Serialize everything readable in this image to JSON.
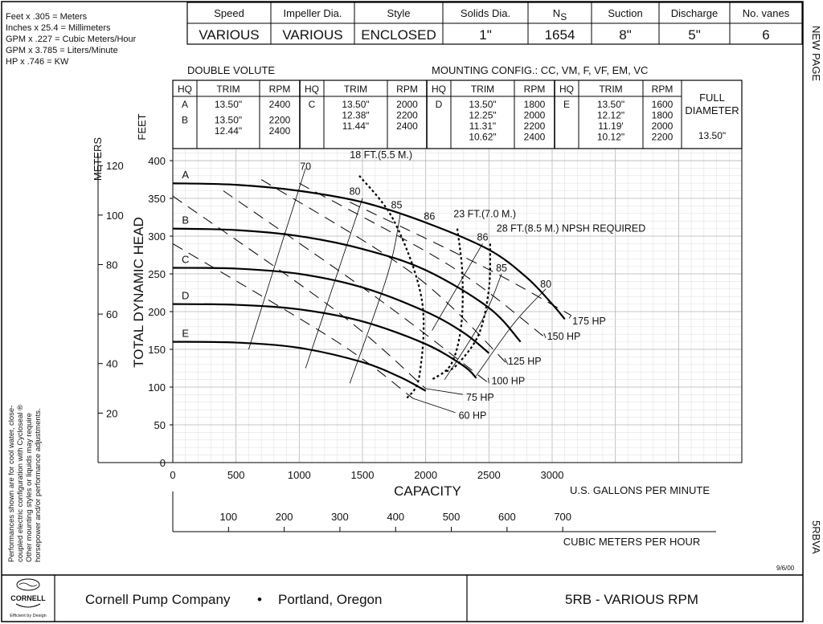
{
  "conversions": [
    "Feet x .305 = Meters",
    "Inches x 25.4 = Millimeters",
    "GPM x .227 = Cubic Meters/Hour",
    "GPM x 3.785 = Liters/Minute",
    "HP x .746 = KW"
  ],
  "spec_table": {
    "headers": [
      "Speed",
      "Impeller Dia.",
      "Style",
      "Solids Dia.",
      "N",
      "Suction",
      "Discharge",
      "No. vanes"
    ],
    "ns_subscript": "S",
    "values": [
      "VARIOUS",
      "VARIOUS",
      "ENCLOSED",
      "1\"",
      "1654",
      "8\"",
      "5\"",
      "6"
    ]
  },
  "side_labels": {
    "new_page": "NEW PAGE",
    "model_code": "5RBVA"
  },
  "volute": "DOUBLE VOLUTE",
  "mounting": "MOUNTING CONFIG.:   CC,  VM,  F,  VF,  EM,  VC",
  "trim_table": {
    "col_headers": [
      "HQ",
      "TRIM",
      "RPM"
    ],
    "groups": [
      {
        "rows": [
          {
            "hq": "A",
            "trim": [
              "13.50\""
            ],
            "rpm": [
              "2400"
            ]
          },
          {
            "hq": "B",
            "trim": [
              "13.50\"",
              "12.44\""
            ],
            "rpm": [
              "2200",
              "2400"
            ]
          }
        ]
      },
      {
        "rows": [
          {
            "hq": "C",
            "trim": [
              "13.50\"",
              "12.38\"",
              "11.44\""
            ],
            "rpm": [
              "2000",
              "2200",
              "2400"
            ]
          }
        ]
      },
      {
        "rows": [
          {
            "hq": "D",
            "trim": [
              "13.50\"",
              "12.25\"",
              "11.31\"",
              "10.62\""
            ],
            "rpm": [
              "1800",
              "2000",
              "2200",
              "2400"
            ]
          }
        ]
      },
      {
        "rows": [
          {
            "hq": "E",
            "trim": [
              "13.50\"",
              "12.12\"",
              "11.19'",
              "10.12\""
            ],
            "rpm": [
              "1600",
              "1800",
              "2000",
              "2200"
            ]
          }
        ]
      }
    ],
    "full_diameter": [
      "FULL",
      "DIAMETER",
      "13.50\""
    ]
  },
  "footnote": [
    "Performances shown are for cool water, close-",
    "coupled electric configuration with Cycloseal ®",
    "Other mounting styles or liquids may require",
    "horsepower and/or performance adjustments."
  ],
  "date": "9/6/00",
  "logo": {
    "name": "CORNELL",
    "tagline": "Efficient by Design"
  },
  "company": "Cornell Pump Company",
  "bullet": "•",
  "location": "Portland, Oregon",
  "model_title": "5RB - VARIOUS RPM",
  "chart_data": {
    "type": "line",
    "xlabel": "CAPACITY",
    "xunit": "U.S. GALLONS PER MINUTE",
    "ylabel": "TOTAL DYNAMIC HEAD",
    "ylabel_feet": "FEET",
    "ylabel_meters": "METERS",
    "xlim": [
      0,
      4500
    ],
    "ylim": [
      0,
      400
    ],
    "x_ticks": [
      0,
      500,
      1000,
      1500,
      2000,
      2500,
      3000
    ],
    "y_ticks": [
      0,
      50,
      100,
      150,
      200,
      250,
      300,
      350,
      400
    ],
    "meters_ticks": [
      20,
      40,
      60,
      80,
      100,
      120
    ],
    "cmh_label": "CUBIC METERS PER HOUR",
    "cmh_ticks": [
      100,
      200,
      300,
      400,
      500,
      600,
      700
    ],
    "grid": true,
    "head_curves": [
      {
        "name": "A",
        "points": [
          [
            0,
            370
          ],
          [
            500,
            368
          ],
          [
            1000,
            360
          ],
          [
            1500,
            345
          ],
          [
            2000,
            318
          ],
          [
            2500,
            282
          ],
          [
            2800,
            245
          ],
          [
            3000,
            210
          ],
          [
            3100,
            190
          ]
        ]
      },
      {
        "name": "B",
        "points": [
          [
            0,
            310
          ],
          [
            500,
            308
          ],
          [
            1000,
            300
          ],
          [
            1500,
            283
          ],
          [
            2000,
            255
          ],
          [
            2500,
            205
          ],
          [
            2750,
            160
          ]
        ]
      },
      {
        "name": "C",
        "points": [
          [
            0,
            258
          ],
          [
            500,
            257
          ],
          [
            1000,
            250
          ],
          [
            1500,
            232
          ],
          [
            2000,
            200
          ],
          [
            2300,
            172
          ],
          [
            2500,
            145
          ]
        ]
      },
      {
        "name": "D",
        "points": [
          [
            0,
            210
          ],
          [
            500,
            209
          ],
          [
            1000,
            203
          ],
          [
            1500,
            187
          ],
          [
            2000,
            157
          ],
          [
            2300,
            128
          ],
          [
            2400,
            112
          ]
        ]
      },
      {
        "name": "E",
        "points": [
          [
            0,
            160
          ],
          [
            500,
            159
          ],
          [
            1000,
            152
          ],
          [
            1500,
            133
          ],
          [
            1800,
            113
          ],
          [
            2000,
            95
          ]
        ]
      }
    ],
    "efficiency_lines": [
      {
        "name": "70",
        "points": [
          [
            600,
            150
          ],
          [
            880,
            300
          ],
          [
            1050,
            390
          ]
        ],
        "label_at": [
          1050,
          388
        ]
      },
      {
        "name": "80",
        "points": [
          [
            1050,
            125
          ],
          [
            1300,
            250
          ],
          [
            1500,
            350
          ]
        ],
        "label_at": [
          1440,
          355
        ]
      },
      {
        "name": "85",
        "points": [
          [
            1400,
            105
          ],
          [
            1700,
            250
          ],
          [
            1800,
            330
          ]
        ],
        "label_at": [
          1770,
          337
        ]
      },
      {
        "name": "86",
        "points": [
          [
            2050,
            175
          ],
          [
            2380,
            270
          ],
          [
            2450,
            290
          ]
        ],
        "label_at": [
          2450,
          294
        ]
      },
      {
        "name": "85",
        "points": [
          [
            2150,
            110
          ],
          [
            2450,
            190
          ],
          [
            2600,
            250
          ]
        ],
        "label_at": [
          2600,
          253
        ]
      },
      {
        "name": "80",
        "points": [
          [
            2400,
            115
          ],
          [
            2700,
            185
          ],
          [
            2950,
            230
          ]
        ],
        "label_at": [
          2950,
          232
        ]
      },
      {
        "name": "86",
        "points": [
          [
            1950,
            322
          ],
          [
            2000,
            325
          ]
        ],
        "label_at": [
          2030,
          322
        ]
      }
    ],
    "hp_lines": [
      {
        "name": "60 HP",
        "points": [
          [
            0,
            290
          ],
          [
            1300,
            160
          ],
          [
            1900,
            85
          ]
        ],
        "label_at": [
          2260,
          62
        ]
      },
      {
        "name": "75 HP",
        "points": [
          [
            0,
            353
          ],
          [
            1300,
            200
          ],
          [
            2000,
            98
          ]
        ],
        "label_at": [
          2320,
          86
        ]
      },
      {
        "name": "100 HP",
        "points": [
          [
            400,
            360
          ],
          [
            1600,
            220
          ],
          [
            2500,
            105
          ]
        ],
        "label_at": [
          2520,
          108
        ]
      },
      {
        "name": "125 HP",
        "points": [
          [
            700,
            375
          ],
          [
            1900,
            250
          ],
          [
            2650,
            130
          ]
        ],
        "label_at": [
          2650,
          134
        ]
      },
      {
        "name": "150 HP",
        "points": [
          [
            1000,
            370
          ],
          [
            2200,
            260
          ],
          [
            2950,
            165
          ]
        ],
        "label_at": [
          2960,
          167
        ]
      },
      {
        "name": "175 HP",
        "points": [
          [
            1400,
            345
          ],
          [
            2450,
            260
          ],
          [
            3150,
            195
          ]
        ],
        "label_at": [
          3160,
          187
        ]
      }
    ],
    "npsh_lines": [
      {
        "name": "18 FT.(5.5 M.)",
        "points": [
          [
            1475,
            380
          ],
          [
            1750,
            320
          ],
          [
            1970,
            215
          ],
          [
            1950,
            115
          ],
          [
            1850,
            85
          ]
        ],
        "label_at": [
          1400,
          403
        ]
      },
      {
        "name": "23 FT.(7.0 M.)",
        "points": [
          [
            2250,
            310
          ],
          [
            2290,
            250
          ],
          [
            2280,
            180
          ],
          [
            2200,
            130
          ],
          [
            2050,
            110
          ]
        ],
        "label_at": [
          2220,
          325
        ]
      },
      {
        "name": "28 FT.(8.5 M.) NPSH REQUIRED",
        "points": [
          [
            2510,
            290
          ],
          [
            2500,
            230
          ],
          [
            2420,
            170
          ],
          [
            2250,
            130
          ],
          [
            2150,
            120
          ]
        ],
        "label_at": [
          2560,
          306
        ]
      }
    ]
  }
}
